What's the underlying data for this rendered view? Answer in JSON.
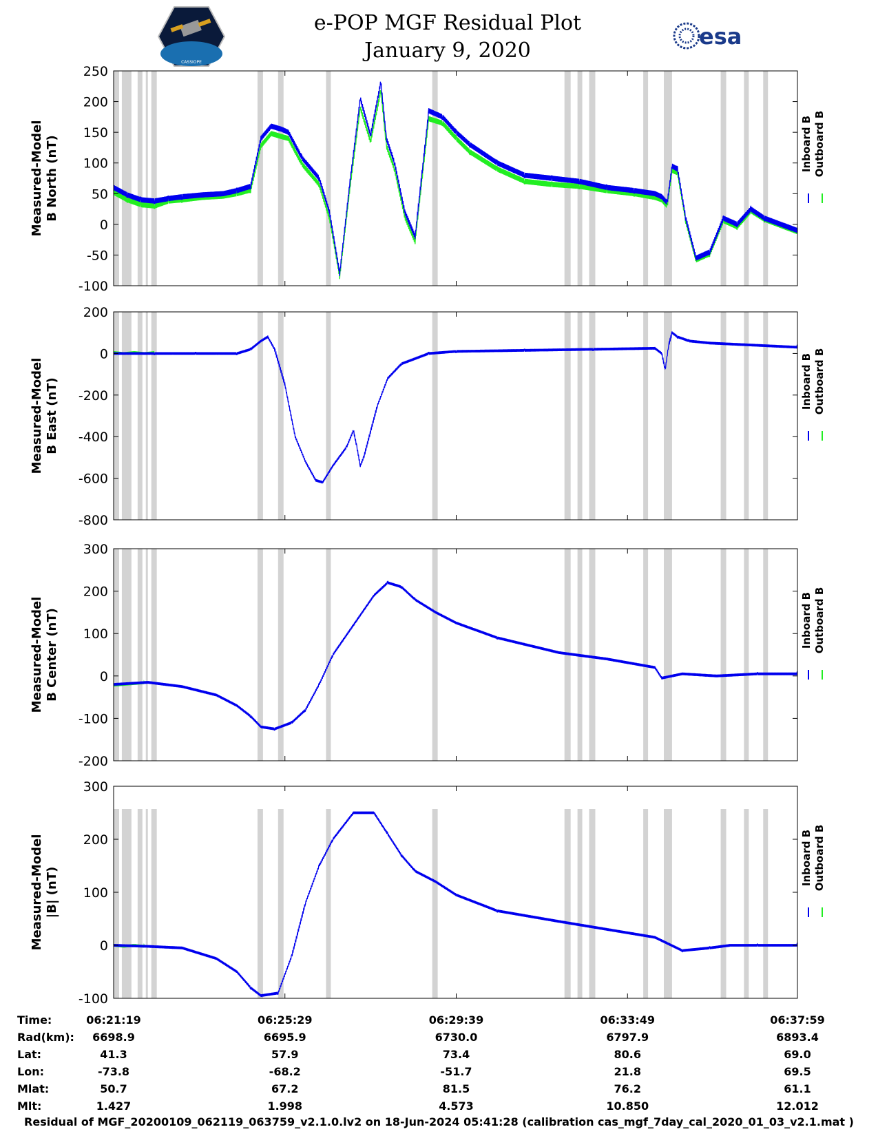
{
  "header": {
    "title_line1": "e-POP MGF Residual Plot",
    "title_line2": "January 9, 2020",
    "logo_left_text": "CASSIOPE",
    "logo_right_text": "esa"
  },
  "footer": {
    "text": "Residual of MGF_20200109_062119_063759_v2.1.0.lv2 on 18-Jun-2024 05:41:28 (calibration cas_mgf_7day_cal_2020_01_03_v2.1.mat )"
  },
  "colors": {
    "inboard": "#0000ee",
    "outboard": "#22ee22",
    "gap": "#d3d3d3"
  },
  "chart_data": [
    {
      "type": "line",
      "ylabel": [
        "Measured-Model",
        "B North (nT)"
      ],
      "legend": [
        "Inboard B",
        "Outboard B"
      ],
      "ylim": [
        -100,
        250
      ],
      "yticks": [
        -100,
        -50,
        0,
        50,
        100,
        150,
        200,
        250
      ],
      "xlim": [
        0,
        998
      ],
      "series": [
        {
          "name": "Inboard B",
          "x": [
            0,
            20,
            40,
            60,
            80,
            100,
            130,
            160,
            180,
            200,
            215,
            230,
            245,
            255,
            275,
            300,
            315,
            330,
            345,
            360,
            375,
            390,
            398,
            410,
            425,
            440,
            460,
            480,
            500,
            520,
            560,
            600,
            640,
            680,
            720,
            760,
            790,
            800,
            808,
            815,
            823,
            835,
            850,
            870,
            890,
            910,
            930,
            950,
            998
          ],
          "y": [
            60,
            48,
            40,
            38,
            42,
            45,
            48,
            50,
            55,
            62,
            140,
            160,
            155,
            150,
            108,
            75,
            20,
            -80,
            70,
            205,
            145,
            232,
            140,
            100,
            20,
            -20,
            185,
            175,
            150,
            130,
            100,
            80,
            75,
            70,
            60,
            55,
            50,
            45,
            35,
            95,
            90,
            10,
            -55,
            -45,
            10,
            0,
            25,
            10,
            -10
          ]
        },
        {
          "name": "Outboard B",
          "x": [
            0,
            20,
            40,
            60,
            80,
            100,
            130,
            160,
            180,
            200,
            215,
            230,
            245,
            255,
            275,
            300,
            315,
            330,
            345,
            360,
            375,
            390,
            398,
            410,
            425,
            440,
            460,
            480,
            500,
            520,
            560,
            600,
            640,
            680,
            720,
            760,
            790,
            800,
            808,
            815,
            823,
            835,
            850,
            870,
            890,
            910,
            930,
            950,
            998
          ],
          "y": [
            52,
            40,
            32,
            30,
            38,
            40,
            44,
            46,
            50,
            56,
            128,
            148,
            143,
            140,
            98,
            65,
            10,
            -85,
            60,
            190,
            135,
            218,
            128,
            90,
            12,
            -28,
            172,
            165,
            140,
            118,
            90,
            70,
            65,
            62,
            55,
            50,
            44,
            40,
            30,
            88,
            84,
            5,
            -58,
            -48,
            6,
            -4,
            22,
            8,
            -12
          ]
        }
      ]
    },
    {
      "type": "line",
      "ylabel": [
        "Measured-Model",
        "B East (nT)"
      ],
      "legend": [
        "Inboard B",
        "Outboard B"
      ],
      "ylim": [
        -800,
        200
      ],
      "yticks": [
        -800,
        -600,
        -400,
        -200,
        0,
        200
      ],
      "xlim": [
        0,
        998
      ],
      "series": [
        {
          "name": "Inboard B",
          "x": [
            0,
            60,
            120,
            180,
            200,
            215,
            225,
            235,
            250,
            265,
            280,
            295,
            305,
            320,
            340,
            350,
            355,
            360,
            365,
            385,
            400,
            420,
            460,
            500,
            600,
            700,
            790,
            800,
            805,
            810,
            815,
            823,
            840,
            870,
            998
          ],
          "y": [
            0,
            0,
            0,
            0,
            20,
            60,
            80,
            20,
            -150,
            -400,
            -520,
            -610,
            -620,
            -540,
            -450,
            -370,
            -450,
            -540,
            -500,
            -250,
            -120,
            -50,
            0,
            10,
            15,
            20,
            25,
            0,
            -80,
            40,
            100,
            80,
            60,
            50,
            30
          ]
        },
        {
          "name": "Outboard B",
          "x": [
            0,
            15,
            30,
            45,
            60
          ],
          "y": [
            5,
            0,
            5,
            0,
            5
          ]
        }
      ]
    },
    {
      "type": "line",
      "ylabel": [
        "Measured-Model",
        "B Center (nT)"
      ],
      "legend": [
        "Inboard B",
        "Outboard B"
      ],
      "ylim": [
        -200,
        300
      ],
      "yticks": [
        -200,
        -100,
        0,
        100,
        200,
        300
      ],
      "xlim": [
        0,
        998
      ],
      "series": [
        {
          "name": "Inboard B",
          "x": [
            0,
            50,
            100,
            150,
            180,
            200,
            215,
            235,
            260,
            280,
            300,
            320,
            350,
            380,
            400,
            420,
            440,
            470,
            500,
            560,
            650,
            720,
            790,
            800,
            830,
            880,
            940,
            998
          ],
          "y": [
            -20,
            -15,
            -25,
            -45,
            -70,
            -95,
            -120,
            -125,
            -110,
            -80,
            -20,
            50,
            120,
            190,
            220,
            210,
            180,
            150,
            125,
            90,
            55,
            40,
            20,
            -5,
            5,
            0,
            5,
            5
          ]
        },
        {
          "name": "Outboard B",
          "x": [
            0,
            15,
            30,
            45
          ],
          "y": [
            -22,
            -20,
            -18,
            -16
          ]
        }
      ]
    },
    {
      "type": "line",
      "ylabel": [
        "Measured-Model",
        "|B| (nT)"
      ],
      "legend": [
        "Inboard B",
        "Outboard B"
      ],
      "ylim": [
        -100,
        300
      ],
      "yticks": [
        -100,
        0,
        100,
        200,
        300
      ],
      "xlim": [
        0,
        998
      ],
      "series": [
        {
          "name": "Inboard B",
          "x": [
            0,
            50,
            100,
            150,
            180,
            200,
            215,
            240,
            260,
            280,
            300,
            320,
            350,
            380,
            400,
            420,
            440,
            470,
            500,
            560,
            650,
            720,
            790,
            830,
            870,
            900,
            940,
            998
          ],
          "y": [
            0,
            -2,
            -5,
            -25,
            -50,
            -80,
            -95,
            -90,
            -20,
            80,
            150,
            200,
            250,
            250,
            210,
            170,
            140,
            120,
            95,
            65,
            45,
            30,
            15,
            -10,
            -5,
            0,
            0,
            0
          ]
        },
        {
          "name": "Outboard B",
          "x": [
            0,
            15,
            30,
            45
          ],
          "y": [
            0,
            -2,
            0,
            -2
          ]
        }
      ]
    }
  ],
  "gaps": [
    [
      0,
      8
    ],
    [
      12,
      26
    ],
    [
      35,
      42
    ],
    [
      47,
      50
    ],
    [
      55,
      63
    ],
    [
      210,
      218
    ],
    [
      240,
      248
    ],
    [
      310,
      317
    ],
    [
      465,
      473
    ],
    [
      658,
      667
    ],
    [
      677,
      684
    ],
    [
      694,
      703
    ],
    [
      773,
      780
    ],
    [
      803,
      815
    ],
    [
      886,
      894
    ],
    [
      920,
      927
    ],
    [
      948,
      955
    ]
  ],
  "time_axis": {
    "rows": [
      {
        "label": "Time:",
        "values": [
          "06:21:19",
          "06:25:29",
          "06:29:39",
          "06:33:49",
          "06:37:59"
        ]
      },
      {
        "label": "Rad(km):",
        "values": [
          "6698.9",
          "6695.9",
          "6730.0",
          "6797.9",
          "6893.4"
        ]
      },
      {
        "label": "Lat:",
        "values": [
          "41.3",
          "57.9",
          "73.4",
          "80.6",
          "69.0"
        ]
      },
      {
        "label": "Lon:",
        "values": [
          "-73.8",
          "-68.2",
          "-51.7",
          "21.8",
          "69.5"
        ]
      },
      {
        "label": "Mlat:",
        "values": [
          "50.7",
          "67.2",
          "81.5",
          "76.2",
          "61.1"
        ]
      },
      {
        "label": "Mlt:",
        "values": [
          "1.427",
          "1.998",
          "4.573",
          "10.850",
          "12.012"
        ]
      }
    ],
    "tick_positions": [
      0,
      250,
      500,
      750,
      998
    ]
  }
}
